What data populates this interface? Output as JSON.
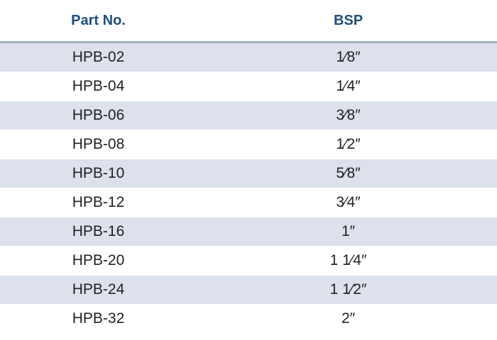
{
  "table": {
    "headers": [
      "Part No.",
      "BSP"
    ],
    "rows": [
      {
        "part": "HPB-02",
        "bsp": "1⁄8″"
      },
      {
        "part": "HPB-04",
        "bsp": "1⁄4″"
      },
      {
        "part": "HPB-06",
        "bsp": "3⁄8″"
      },
      {
        "part": "HPB-08",
        "bsp": "1⁄2″"
      },
      {
        "part": "HPB-10",
        "bsp": "5⁄8″"
      },
      {
        "part": "HPB-12",
        "bsp": "3⁄4″"
      },
      {
        "part": "HPB-16",
        "bsp": "1″"
      },
      {
        "part": "HPB-20",
        "bsp": "1 1⁄4″"
      },
      {
        "part": "HPB-24",
        "bsp": "1 1⁄2″"
      },
      {
        "part": "HPB-32",
        "bsp": "2″"
      }
    ]
  },
  "colors": {
    "header_text": "#1f4f7d",
    "row_shade": "#dce1ec",
    "header_rule": "#9fb0c6"
  }
}
